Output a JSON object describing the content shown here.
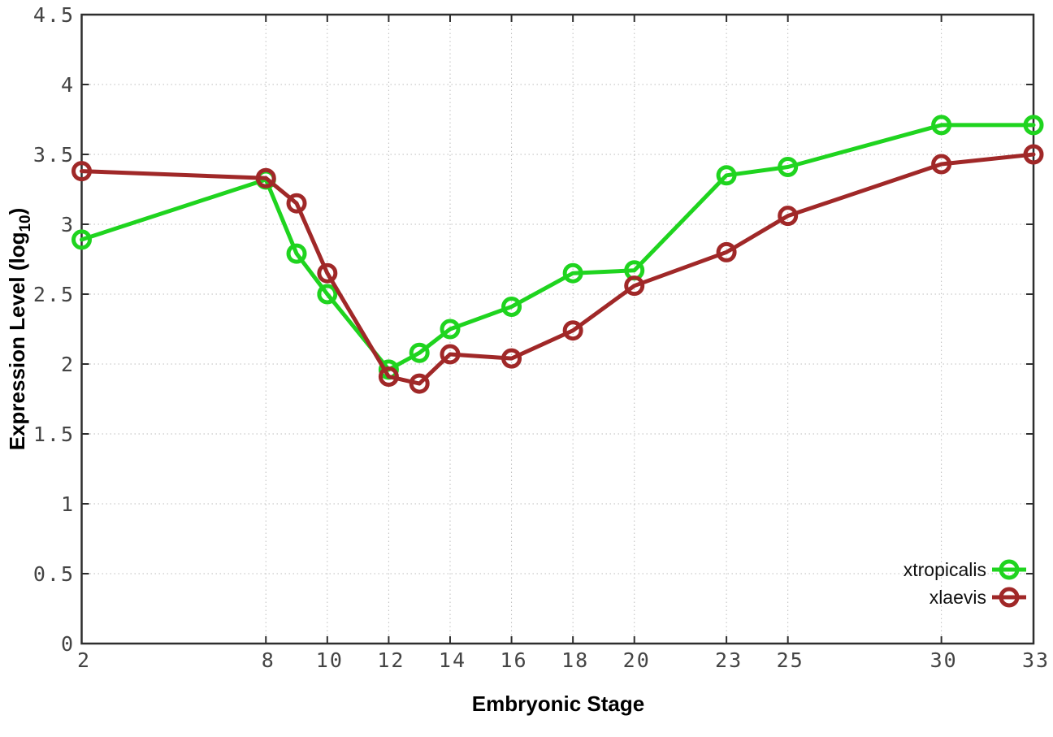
{
  "chart_data": {
    "type": "line",
    "title": "",
    "xlabel": "Embryonic Stage",
    "ylabel": "Expression Level (log10)",
    "ylabel_parts": {
      "prefix": "Expression Level (log",
      "sub": "10",
      "suffix": ")"
    },
    "x": [
      2,
      8,
      9,
      10,
      12,
      13,
      14,
      16,
      18,
      20,
      23,
      25,
      30,
      33
    ],
    "series": [
      {
        "name": "xtropicalis",
        "color": "#1fd41f",
        "values": [
          2.89,
          3.32,
          2.79,
          2.5,
          1.96,
          2.08,
          2.25,
          2.41,
          2.65,
          2.67,
          3.35,
          3.41,
          3.71,
          3.71
        ]
      },
      {
        "name": "xlaevis",
        "color": "#a02828",
        "values": [
          3.38,
          3.33,
          3.15,
          2.65,
          1.91,
          1.86,
          2.07,
          2.04,
          2.24,
          2.56,
          2.8,
          3.06,
          3.43,
          3.5
        ]
      }
    ],
    "xticks": [
      2,
      8,
      10,
      12,
      14,
      16,
      18,
      20,
      23,
      25,
      30,
      33
    ],
    "yticks": [
      "0",
      "0.5",
      "1",
      "1.5",
      "2",
      "2.5",
      "3",
      "3.5",
      "4",
      "4.5"
    ],
    "ytick_values": [
      0,
      0.5,
      1,
      1.5,
      2,
      2.5,
      3,
      3.5,
      4,
      4.5
    ],
    "xlim": [
      2,
      33
    ],
    "ylim": [
      0,
      4.5
    ],
    "grid": true,
    "marker": "open-circle",
    "legend_position": "bottom-right",
    "border_color": "#2e2e2e",
    "grid_color": "#bdbdbd"
  }
}
